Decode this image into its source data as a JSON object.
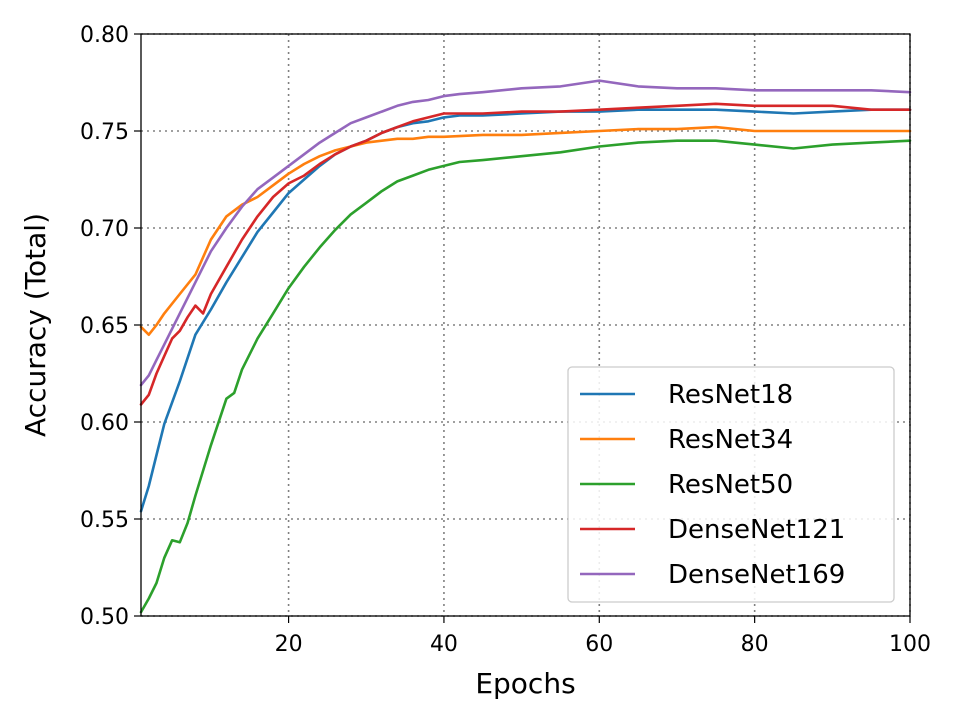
{
  "chart_data": {
    "type": "line",
    "title": "",
    "xlabel": "Epochs",
    "ylabel": "Accuracy (Total)",
    "xlim": [
      1,
      100
    ],
    "ylim": [
      0.5,
      0.8
    ],
    "xticks": [
      20,
      40,
      60,
      80,
      100
    ],
    "xtick_labels": [
      "20",
      "40",
      "60",
      "80",
      "100"
    ],
    "yticks": [
      0.5,
      0.55,
      0.6,
      0.65,
      0.7,
      0.75,
      0.8
    ],
    "ytick_labels": [
      "0.50",
      "0.55",
      "0.60",
      "0.65",
      "0.70",
      "0.75",
      "0.80"
    ],
    "grid": true,
    "legend_position": "lower-right",
    "series": [
      {
        "name": "ResNet18",
        "color": "#1f77b4",
        "x": [
          1,
          2,
          3,
          4,
          6,
          8,
          10,
          12,
          14,
          16,
          18,
          20,
          22,
          24,
          26,
          28,
          30,
          32,
          34,
          36,
          38,
          40,
          42,
          45,
          50,
          55,
          60,
          65,
          70,
          75,
          80,
          85,
          90,
          95,
          100
        ],
        "y": [
          0.554,
          0.567,
          0.583,
          0.599,
          0.621,
          0.645,
          0.658,
          0.672,
          0.685,
          0.698,
          0.708,
          0.718,
          0.725,
          0.732,
          0.738,
          0.742,
          0.745,
          0.749,
          0.752,
          0.754,
          0.755,
          0.757,
          0.758,
          0.758,
          0.759,
          0.76,
          0.76,
          0.761,
          0.761,
          0.761,
          0.76,
          0.759,
          0.76,
          0.761,
          0.761
        ]
      },
      {
        "name": "ResNet34",
        "color": "#ff7f0e",
        "x": [
          1,
          2,
          3,
          4,
          6,
          8,
          10,
          12,
          14,
          16,
          18,
          20,
          22,
          24,
          26,
          28,
          30,
          32,
          34,
          36,
          38,
          40,
          45,
          50,
          55,
          60,
          65,
          70,
          75,
          80,
          85,
          90,
          95,
          100
        ],
        "y": [
          0.649,
          0.645,
          0.65,
          0.656,
          0.666,
          0.676,
          0.694,
          0.706,
          0.712,
          0.716,
          0.722,
          0.728,
          0.733,
          0.737,
          0.74,
          0.742,
          0.744,
          0.745,
          0.746,
          0.746,
          0.747,
          0.747,
          0.748,
          0.748,
          0.749,
          0.75,
          0.751,
          0.751,
          0.752,
          0.75,
          0.75,
          0.75,
          0.75,
          0.75
        ]
      },
      {
        "name": "ResNet50",
        "color": "#2ca02c",
        "x": [
          1,
          2,
          3,
          4,
          5,
          6,
          7,
          8,
          10,
          12,
          13,
          14,
          16,
          18,
          20,
          22,
          24,
          26,
          28,
          30,
          32,
          34,
          36,
          38,
          40,
          42,
          45,
          50,
          55,
          60,
          65,
          70,
          75,
          80,
          85,
          90,
          95,
          100
        ],
        "y": [
          0.502,
          0.509,
          0.517,
          0.53,
          0.539,
          0.538,
          0.548,
          0.562,
          0.588,
          0.612,
          0.615,
          0.627,
          0.643,
          0.656,
          0.669,
          0.68,
          0.69,
          0.699,
          0.707,
          0.713,
          0.719,
          0.724,
          0.727,
          0.73,
          0.732,
          0.734,
          0.735,
          0.737,
          0.739,
          0.742,
          0.744,
          0.745,
          0.745,
          0.743,
          0.741,
          0.743,
          0.744,
          0.745
        ]
      },
      {
        "name": "DenseNet121",
        "color": "#d62728",
        "x": [
          1,
          2,
          3,
          4,
          5,
          6,
          7,
          8,
          9,
          10,
          12,
          14,
          16,
          18,
          20,
          22,
          24,
          26,
          28,
          30,
          32,
          34,
          36,
          38,
          40,
          42,
          45,
          50,
          55,
          60,
          65,
          70,
          75,
          80,
          85,
          90,
          95,
          100
        ],
        "y": [
          0.609,
          0.614,
          0.625,
          0.634,
          0.643,
          0.647,
          0.654,
          0.66,
          0.656,
          0.666,
          0.68,
          0.694,
          0.706,
          0.716,
          0.723,
          0.727,
          0.733,
          0.738,
          0.742,
          0.745,
          0.749,
          0.752,
          0.755,
          0.757,
          0.759,
          0.759,
          0.759,
          0.76,
          0.76,
          0.761,
          0.762,
          0.763,
          0.764,
          0.763,
          0.763,
          0.763,
          0.761,
          0.761
        ]
      },
      {
        "name": "DenseNet169",
        "color": "#9467bd",
        "x": [
          1,
          2,
          3,
          4,
          6,
          8,
          10,
          12,
          14,
          16,
          18,
          20,
          22,
          24,
          26,
          28,
          30,
          32,
          34,
          36,
          38,
          40,
          42,
          45,
          50,
          55,
          60,
          65,
          70,
          75,
          80,
          85,
          90,
          95,
          100
        ],
        "y": [
          0.619,
          0.624,
          0.632,
          0.64,
          0.656,
          0.672,
          0.688,
          0.7,
          0.711,
          0.72,
          0.726,
          0.732,
          0.738,
          0.744,
          0.749,
          0.754,
          0.757,
          0.76,
          0.763,
          0.765,
          0.766,
          0.768,
          0.769,
          0.77,
          0.772,
          0.773,
          0.776,
          0.773,
          0.772,
          0.772,
          0.771,
          0.771,
          0.771,
          0.771,
          0.77
        ]
      }
    ]
  }
}
